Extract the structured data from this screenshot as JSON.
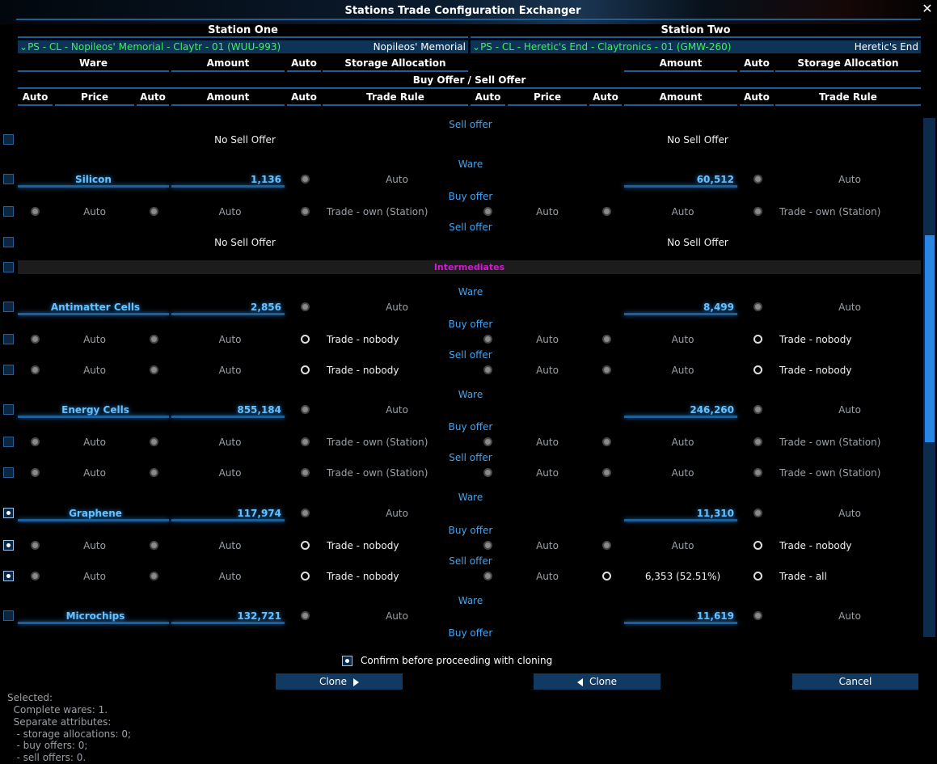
{
  "window": {
    "title": "Stations Trade Configuration Exchanger",
    "close_icon": "close-icon"
  },
  "station_one": {
    "header": "Station One",
    "selector": "PS - CL - Nopileos' Memorial - Claytr - 01 (WUU-993)",
    "short_name": "Nopileos' Memorial"
  },
  "station_two": {
    "header": "Station Two",
    "selector": "PS - CL - Heretic's End - Claytronics - 01 (GMW-260)",
    "short_name": "Heretic's End"
  },
  "headers": {
    "ware": "Ware",
    "amount": "Amount",
    "auto": "Auto",
    "storage_allocation": "Storage Allocation",
    "buy_sell": "Buy Offer / Sell Offer",
    "price": "Price",
    "trade_rule": "Trade Rule"
  },
  "labels": {
    "sell_offer": "Sell offer",
    "buy_offer": "Buy offer",
    "ware": "Ware",
    "no_sell_offer": "No Sell Offer",
    "auto": "Auto"
  },
  "group": {
    "name": "Intermediates"
  },
  "rows": [
    {
      "type": "nosell",
      "checked": false,
      "left": "No Sell Offer",
      "right": "No Sell Offer"
    },
    {
      "type": "ware",
      "checked": false,
      "ware": "Silicon",
      "left_amount": "1,136",
      "left_alloc": "Auto",
      "right_amount": "60,512",
      "right_alloc": "Auto"
    },
    {
      "type": "offer",
      "label": "Buy offer",
      "checked": false,
      "left_price": "Auto",
      "left_amount": "Auto",
      "left_rule": "Trade - own (Station)",
      "left_rule_active": false,
      "right_price": "Auto",
      "right_amount": "Auto",
      "right_amount_active": false,
      "right_rule": "Trade - own (Station)",
      "right_rule_active": false
    },
    {
      "type": "nosell",
      "checked": false,
      "left": "No Sell Offer",
      "right": "No Sell Offer"
    },
    {
      "type": "ware",
      "checked": false,
      "ware": "Antimatter Cells",
      "left_amount": "2,856",
      "left_alloc": "Auto",
      "right_amount": "8,499",
      "right_alloc": "Auto"
    },
    {
      "type": "offer",
      "label": "Buy offer",
      "checked": false,
      "left_price": "Auto",
      "left_amount": "Auto",
      "left_rule": "Trade - nobody",
      "left_rule_active": true,
      "right_price": "Auto",
      "right_amount": "Auto",
      "right_amount_active": false,
      "right_rule": "Trade - nobody",
      "right_rule_active": true
    },
    {
      "type": "offer",
      "label": "Sell offer",
      "checked": false,
      "left_price": "Auto",
      "left_amount": "Auto",
      "left_rule": "Trade - nobody",
      "left_rule_active": true,
      "right_price": "Auto",
      "right_amount": "Auto",
      "right_amount_active": false,
      "right_rule": "Trade - nobody",
      "right_rule_active": true
    },
    {
      "type": "ware",
      "checked": false,
      "ware": "Energy Cells",
      "left_amount": "855,184",
      "left_alloc": "Auto",
      "right_amount": "246,260",
      "right_alloc": "Auto"
    },
    {
      "type": "offer",
      "label": "Buy offer",
      "checked": false,
      "left_price": "Auto",
      "left_amount": "Auto",
      "left_rule": "Trade - own (Station)",
      "left_rule_active": false,
      "right_price": "Auto",
      "right_amount": "Auto",
      "right_amount_active": false,
      "right_rule": "Trade - own (Station)",
      "right_rule_active": false
    },
    {
      "type": "offer",
      "label": "Sell offer",
      "checked": false,
      "left_price": "Auto",
      "left_amount": "Auto",
      "left_rule": "Trade - own (Station)",
      "left_rule_active": false,
      "right_price": "Auto",
      "right_amount": "Auto",
      "right_amount_active": false,
      "right_rule": "Trade - own (Station)",
      "right_rule_active": false
    },
    {
      "type": "ware",
      "checked": true,
      "ware": "Graphene",
      "left_amount": "117,974",
      "left_alloc": "Auto",
      "right_amount": "11,310",
      "right_alloc": "Auto"
    },
    {
      "type": "offer",
      "label": "Buy offer",
      "checked": true,
      "left_price": "Auto",
      "left_amount": "Auto",
      "left_rule": "Trade - nobody",
      "left_rule_active": true,
      "right_price": "Auto",
      "right_amount": "Auto",
      "right_amount_active": false,
      "right_rule": "Trade - nobody",
      "right_rule_active": true
    },
    {
      "type": "offer",
      "label": "Sell offer",
      "checked": true,
      "left_price": "Auto",
      "left_amount": "Auto",
      "left_rule": "Trade - nobody",
      "left_rule_active": true,
      "right_price": "Auto",
      "right_amount": "6,353 (52.51%)",
      "right_amount_active": true,
      "right_rule": "Trade - all",
      "right_rule_active": true
    },
    {
      "type": "ware",
      "checked": false,
      "ware": "Microchips",
      "left_amount": "132,721",
      "left_alloc": "Auto",
      "right_amount": "11,619",
      "right_alloc": "Auto"
    }
  ],
  "footer": {
    "confirm_label": "Confirm before proceeding with cloning",
    "confirm_checked": true,
    "clone_right_label": "Clone",
    "clone_left_label": "Clone",
    "cancel_label": "Cancel"
  },
  "summary": [
    "Selected:",
    "  Complete wares: 1.",
    "  Separate attributes:",
    "   - storage allocations: 0;",
    "   - buy offers: 0;",
    "   - sell offers: 0."
  ],
  "colors": {
    "accent_blue": "#43a4f0",
    "ware_blue": "#68c2ff",
    "selector_green": "#3ef05a",
    "group_magenta": "#d21ad2",
    "underline": "#1c5e99"
  }
}
